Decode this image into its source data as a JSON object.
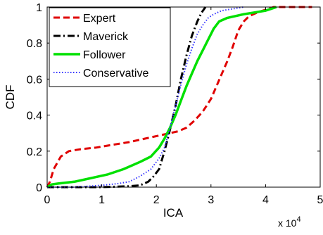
{
  "chart_data": {
    "type": "line",
    "xlabel": "ICA",
    "ylabel": "CDF",
    "x_multiplier": {
      "base": "x 10",
      "exponent": "4"
    },
    "xlim": [
      0,
      50000
    ],
    "ylim": [
      0,
      1
    ],
    "x_ticks": [
      0,
      10000,
      20000,
      30000,
      40000,
      50000
    ],
    "x_tick_labels": [
      "0",
      "1",
      "2",
      "3",
      "4",
      "5"
    ],
    "y_ticks": [
      0,
      0.2,
      0.4,
      0.6,
      0.8,
      1
    ],
    "y_tick_labels": [
      "0",
      "0.2",
      "0.4",
      "0.6",
      "0.8",
      "1"
    ],
    "grid": false,
    "legend_position": "top-left",
    "series": [
      {
        "name": "Expert",
        "color": "#e00000",
        "style": "dashed",
        "points": [
          [
            0,
            0
          ],
          [
            500,
            0.03
          ],
          [
            1200,
            0.1
          ],
          [
            2500,
            0.17
          ],
          [
            4000,
            0.2
          ],
          [
            6000,
            0.21
          ],
          [
            9000,
            0.22
          ],
          [
            12000,
            0.235
          ],
          [
            15000,
            0.25
          ],
          [
            18000,
            0.27
          ],
          [
            21000,
            0.29
          ],
          [
            22500,
            0.3
          ],
          [
            24000,
            0.31
          ],
          [
            25500,
            0.33
          ],
          [
            27000,
            0.37
          ],
          [
            28500,
            0.42
          ],
          [
            30000,
            0.49
          ],
          [
            31000,
            0.56
          ],
          [
            32000,
            0.63
          ],
          [
            33000,
            0.7
          ],
          [
            34000,
            0.78
          ],
          [
            35000,
            0.87
          ],
          [
            36000,
            0.92
          ],
          [
            37000,
            0.95
          ],
          [
            38500,
            0.97
          ],
          [
            40000,
            0.985
          ],
          [
            41500,
            1
          ],
          [
            48500,
            1
          ]
        ]
      },
      {
        "name": "Maverick",
        "color": "#000000",
        "style": "dashdot",
        "points": [
          [
            0,
            0
          ],
          [
            10000,
            0
          ],
          [
            15000,
            0.005
          ],
          [
            17000,
            0.01
          ],
          [
            18500,
            0.03
          ],
          [
            19500,
            0.06
          ],
          [
            20500,
            0.1
          ],
          [
            21500,
            0.2
          ],
          [
            22500,
            0.32
          ],
          [
            23500,
            0.45
          ],
          [
            24500,
            0.6
          ],
          [
            25500,
            0.73
          ],
          [
            26500,
            0.84
          ],
          [
            27500,
            0.92
          ],
          [
            28300,
            0.97
          ],
          [
            29000,
            1
          ]
        ]
      },
      {
        "name": "Follower",
        "color": "#00e000",
        "style": "solid",
        "points": [
          [
            0,
            0
          ],
          [
            800,
            0.015
          ],
          [
            2000,
            0.02
          ],
          [
            5000,
            0.03
          ],
          [
            8000,
            0.05
          ],
          [
            11000,
            0.07
          ],
          [
            14000,
            0.1
          ],
          [
            17000,
            0.14
          ],
          [
            19000,
            0.17
          ],
          [
            20500,
            0.22
          ],
          [
            21500,
            0.27
          ],
          [
            22500,
            0.33
          ],
          [
            23500,
            0.4
          ],
          [
            24500,
            0.48
          ],
          [
            25500,
            0.56
          ],
          [
            26500,
            0.63
          ],
          [
            27500,
            0.7
          ],
          [
            28500,
            0.76
          ],
          [
            29500,
            0.82
          ],
          [
            30500,
            0.88
          ],
          [
            31500,
            0.92
          ],
          [
            33000,
            0.94
          ],
          [
            34500,
            0.95
          ],
          [
            36000,
            0.96
          ],
          [
            38000,
            0.97
          ],
          [
            40000,
            0.98
          ],
          [
            41000,
            0.99
          ],
          [
            42000,
            1
          ]
        ]
      },
      {
        "name": "Conservative",
        "color": "#3333ff",
        "style": "dotted",
        "points": [
          [
            0,
            0
          ],
          [
            5000,
            0
          ],
          [
            10000,
            0.01
          ],
          [
            13000,
            0.02
          ],
          [
            15000,
            0.03
          ],
          [
            17000,
            0.06
          ],
          [
            19000,
            0.1
          ],
          [
            20500,
            0.16
          ],
          [
            21500,
            0.22
          ],
          [
            22500,
            0.33
          ],
          [
            23500,
            0.45
          ],
          [
            24500,
            0.57
          ],
          [
            25500,
            0.68
          ],
          [
            26500,
            0.77
          ],
          [
            27500,
            0.85
          ],
          [
            28500,
            0.9
          ],
          [
            29500,
            0.94
          ],
          [
            30500,
            0.96
          ],
          [
            32000,
            0.98
          ],
          [
            34000,
            0.99
          ],
          [
            36000,
            1
          ]
        ]
      }
    ]
  }
}
